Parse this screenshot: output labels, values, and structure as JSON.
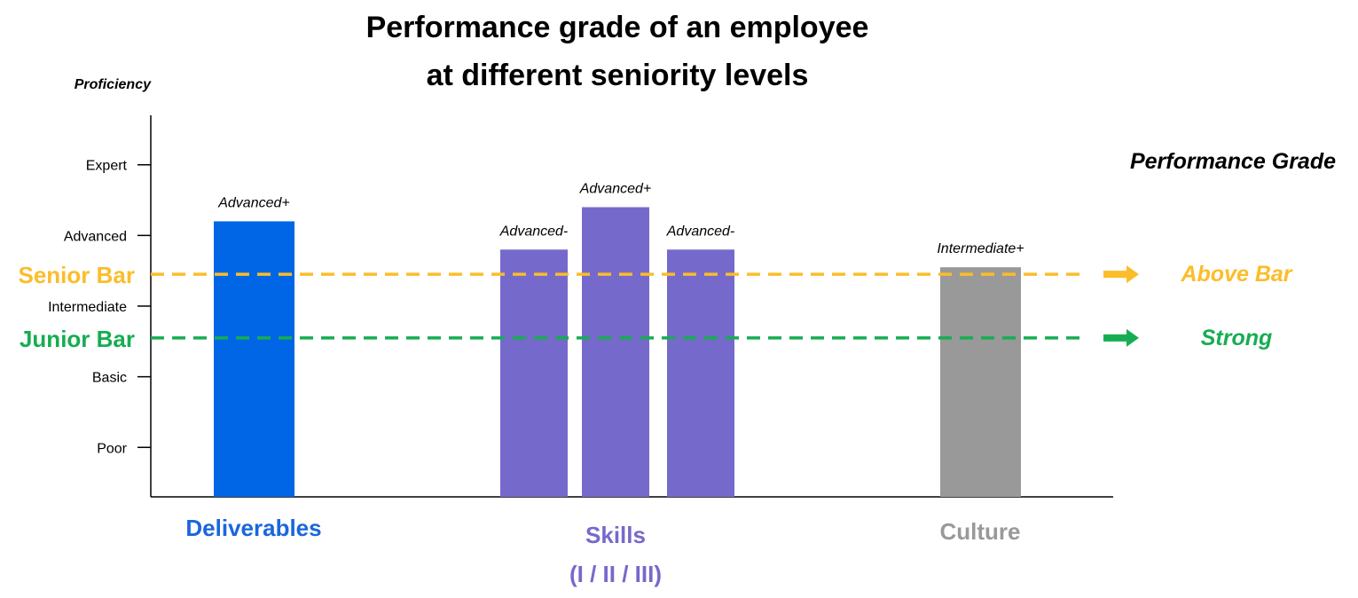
{
  "chart_data": {
    "type": "bar",
    "title_lines": [
      "Performance grade of an employee",
      "at different seniority levels"
    ],
    "ylabel": "Proficiency",
    "y_levels": [
      "Poor",
      "Basic",
      "Intermediate",
      "Advanced",
      "Expert"
    ],
    "ylim": [
      0.3,
      5.7
    ],
    "bars": [
      {
        "group": "Deliverables",
        "value": 4.2,
        "label": "Advanced+",
        "color": "#0066e6"
      },
      {
        "group": "Skills",
        "value": 3.8,
        "label": "Advanced-",
        "color": "#7669cc"
      },
      {
        "group": "Skills",
        "value": 4.4,
        "label": "Advanced+",
        "color": "#7669cc"
      },
      {
        "group": "Skills",
        "value": 3.8,
        "label": "Advanced-",
        "color": "#7669cc"
      },
      {
        "group": "Culture",
        "value": 3.55,
        "label": "Intermediate+",
        "color": "#999999"
      }
    ],
    "categories": [
      {
        "name": "Deliverables",
        "sub": "",
        "color": "#1a66dd"
      },
      {
        "name": "Skills",
        "sub": "(I / II / III)",
        "color": "#7669cc"
      },
      {
        "name": "Culture",
        "sub": "",
        "color": "#999999"
      }
    ],
    "reference_lines": [
      {
        "label": "Senior Bar",
        "value": 3.45,
        "color": "#fbbd2a",
        "grade": "Above Bar"
      },
      {
        "label": "Junior Bar",
        "value": 2.55,
        "color": "#16ad52",
        "grade": "Strong"
      }
    ],
    "legend_title": "Performance Grade"
  }
}
